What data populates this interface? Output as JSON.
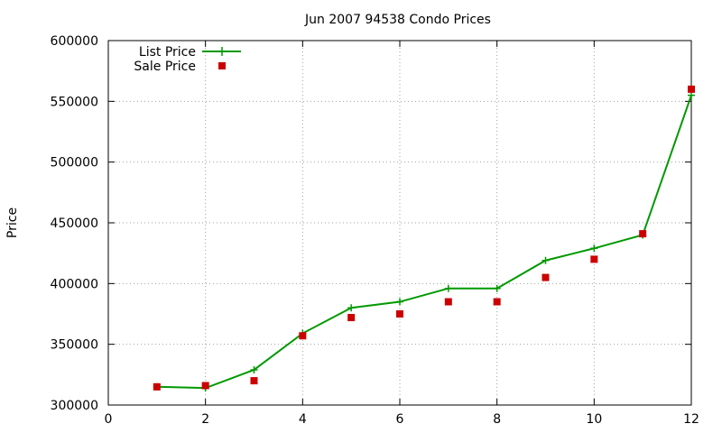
{
  "chart_data": {
    "type": "line",
    "title": "Jun 2007 94538 Condo Prices",
    "xlabel": "",
    "ylabel": "Price",
    "xlim": [
      0,
      12
    ],
    "ylim": [
      300000,
      600000
    ],
    "x_ticks": [
      0,
      2,
      4,
      6,
      8,
      10,
      12
    ],
    "y_ticks": [
      300000,
      350000,
      400000,
      450000,
      500000,
      550000,
      600000
    ],
    "grid": true,
    "legend_position": "top-left",
    "series": [
      {
        "name": "List Price",
        "style": "line+cross",
        "color": "#009900",
        "x": [
          1,
          2,
          3,
          4,
          5,
          6,
          7,
          8,
          9,
          10,
          11,
          12
        ],
        "values": [
          315000,
          314000,
          329000,
          359000,
          380000,
          385000,
          396000,
          396000,
          419000,
          429000,
          440000,
          555000
        ]
      },
      {
        "name": "Sale Price",
        "style": "square",
        "color": "#cc0000",
        "x": [
          1,
          2,
          3,
          4,
          5,
          6,
          7,
          8,
          9,
          10,
          11,
          12
        ],
        "values": [
          315000,
          316000,
          320000,
          357000,
          372000,
          375000,
          385000,
          385000,
          405000,
          420000,
          441000,
          560000
        ]
      }
    ]
  }
}
